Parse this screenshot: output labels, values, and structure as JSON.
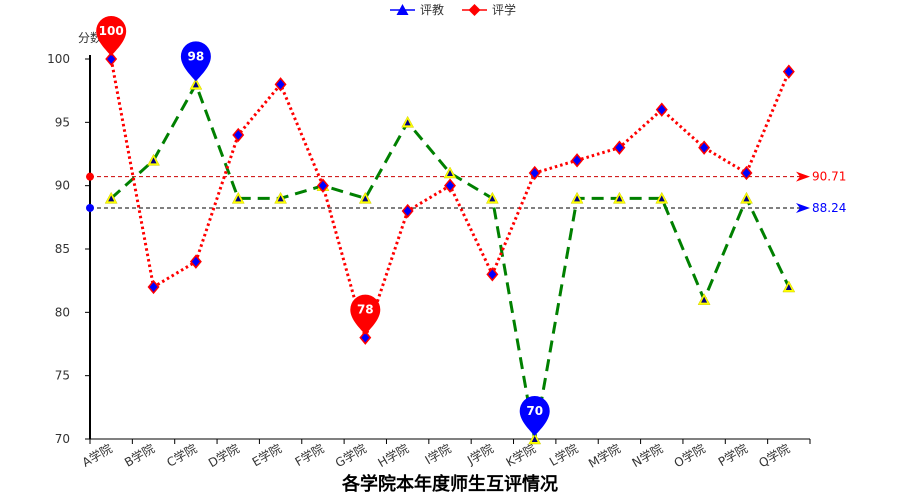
{
  "chart_data": {
    "type": "line",
    "title": "各学院本年度师生互评情况",
    "ylabel": "分数",
    "ylim": [
      70,
      100
    ],
    "yticks": [
      70,
      75,
      80,
      85,
      90,
      95,
      100
    ],
    "categories": [
      "A学院",
      "B学院",
      "C学院",
      "D学院",
      "E学院",
      "F学院",
      "G学院",
      "H学院",
      "I学院",
      "J学院",
      "K学院",
      "L学院",
      "M学院",
      "N学院",
      "O学院",
      "P学院",
      "Q学院"
    ],
    "series": [
      {
        "name": "评教",
        "values": [
          89,
          92,
          98,
          89,
          89,
          90,
          89,
          95,
          91,
          89,
          70,
          89,
          89,
          89,
          81,
          89,
          82
        ],
        "line_color": "#008000",
        "marker_color": "#ffff00",
        "legend_color": "#0000ff",
        "marker": "triangle",
        "line_style": "dashed",
        "pins": [
          {
            "label": "98",
            "index": 2
          },
          {
            "label": "70",
            "index": 10
          }
        ],
        "pin_color": "#0000ff",
        "average": {
          "value": 88.24,
          "label": "88.24"
        },
        "average_color": "#0000ff"
      },
      {
        "name": "评学",
        "values": [
          100,
          82,
          84,
          94,
          98,
          90,
          78,
          88,
          90,
          83,
          91,
          92,
          93,
          96,
          93,
          91,
          99
        ],
        "line_color": "#ff0000",
        "marker_color": "#0000ff",
        "legend_color": "#ff0000",
        "marker": "diamond",
        "line_style": "dotted",
        "pins": [
          {
            "label": "100",
            "index": 0
          },
          {
            "label": "78",
            "index": 6
          }
        ],
        "pin_color": "#ff0000",
        "average": {
          "value": 90.71,
          "label": "90.71"
        },
        "average_color": "#ff0000"
      }
    ],
    "legend_position": "top-center",
    "grid": false
  }
}
